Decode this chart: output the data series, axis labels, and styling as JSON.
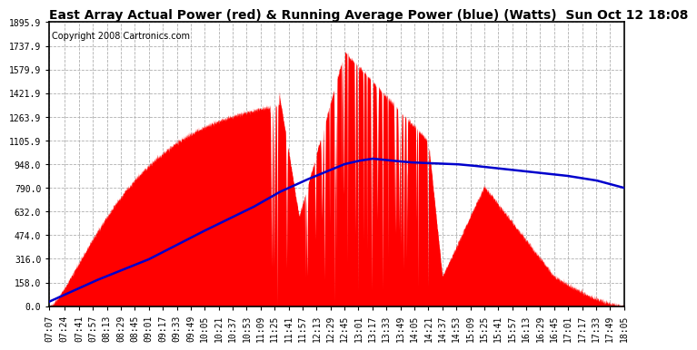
{
  "title": "East Array Actual Power (red) & Running Average Power (blue) (Watts)  Sun Oct 12 18:08",
  "copyright": "Copyright 2008 Cartronics.com",
  "y_ticks": [
    0.0,
    158.0,
    316.0,
    474.0,
    632.0,
    790.0,
    948.0,
    1105.9,
    1263.9,
    1421.9,
    1579.9,
    1737.9,
    1895.9
  ],
  "ylim": [
    0.0,
    1895.9
  ],
  "background_color": "#ffffff",
  "plot_bg_color": "#ffffff",
  "grid_color": "#b0b0b0",
  "red_color": "#ff0000",
  "blue_color": "#0000cc",
  "title_fontsize": 10,
  "copyright_fontsize": 7,
  "tick_fontsize": 7,
  "time_labels": [
    "07:07",
    "07:24",
    "07:41",
    "07:57",
    "08:13",
    "08:29",
    "08:45",
    "09:01",
    "09:17",
    "09:33",
    "09:49",
    "10:05",
    "10:21",
    "10:37",
    "10:53",
    "11:09",
    "11:25",
    "11:41",
    "11:57",
    "12:13",
    "12:29",
    "12:45",
    "13:01",
    "13:17",
    "13:33",
    "13:49",
    "14:05",
    "14:21",
    "14:37",
    "14:53",
    "15:09",
    "15:25",
    "15:41",
    "15:57",
    "16:13",
    "16:29",
    "16:45",
    "17:01",
    "17:17",
    "17:33",
    "17:49",
    "18:05"
  ],
  "x_start_total_min": 427,
  "x_end_total_min": 1085
}
